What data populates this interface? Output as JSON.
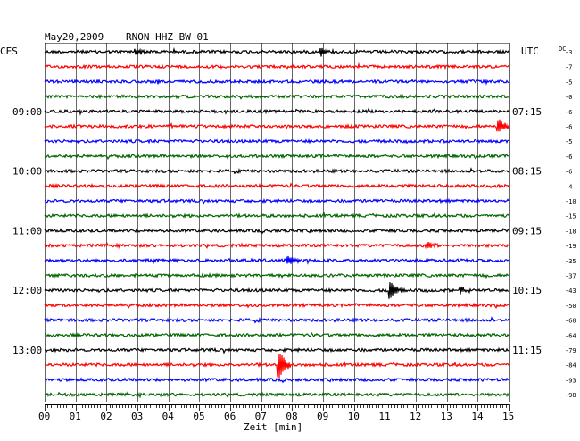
{
  "header": {
    "date": "May20,2009",
    "station": "RNON HHZ BW 01"
  },
  "timezone_left": "CES",
  "timezone_right": "UTC",
  "dc_header": "DC",
  "xlabel": "Zeit [min]",
  "x_ticks": [
    "00",
    "01",
    "02",
    "03",
    "04",
    "05",
    "06",
    "07",
    "08",
    "09",
    "10",
    "11",
    "12",
    "13",
    "14",
    "15"
  ],
  "left_hour_labels": [
    {
      "trace": 4,
      "label": "09:00"
    },
    {
      "trace": 8,
      "label": "10:00"
    },
    {
      "trace": 12,
      "label": "11:00"
    },
    {
      "trace": 16,
      "label": "12:00"
    },
    {
      "trace": 20,
      "label": "13:00"
    }
  ],
  "right_hour_labels": [
    {
      "trace": 4,
      "label": "07:15"
    },
    {
      "trace": 8,
      "label": "08:15"
    },
    {
      "trace": 12,
      "label": "09:15"
    },
    {
      "trace": 16,
      "label": "10:15"
    },
    {
      "trace": 20,
      "label": "11:15"
    }
  ],
  "colors": {
    "trace_cycle": [
      "#000000",
      "#ff0000",
      "#0000ff",
      "#006400"
    ],
    "grid": "#000000",
    "background": "#ffffff"
  },
  "chart_data": {
    "type": "line",
    "title": "May20,2009 RNON HHZ BW 01",
    "xlabel": "Zeit [min]",
    "xlim": [
      0,
      15
    ],
    "traces_count": 24,
    "dc_offsets": [
      "-3",
      "-7",
      "-5",
      "-0",
      "-6",
      "-6",
      "-5",
      "-6",
      "-6",
      "-4",
      "-10",
      "-15",
      "-18",
      "-19",
      "-35",
      "-37",
      "-43",
      "-50",
      "-60",
      "-64",
      "-79",
      "-84",
      "-93",
      "-98"
    ],
    "events": [
      {
        "trace": 0,
        "minute": 3.0,
        "amp": 3
      },
      {
        "trace": 0,
        "minute": 9.0,
        "amp": 4
      },
      {
        "trace": 5,
        "minute": 14.7,
        "amp": 7
      },
      {
        "trace": 13,
        "minute": 12.4,
        "amp": 3
      },
      {
        "trace": 14,
        "minute": 7.9,
        "amp": 4
      },
      {
        "trace": 16,
        "minute": 11.2,
        "amp": 9
      },
      {
        "trace": 16,
        "minute": 13.5,
        "amp": 3
      },
      {
        "trace": 21,
        "minute": 7.6,
        "amp": 14
      }
    ]
  }
}
